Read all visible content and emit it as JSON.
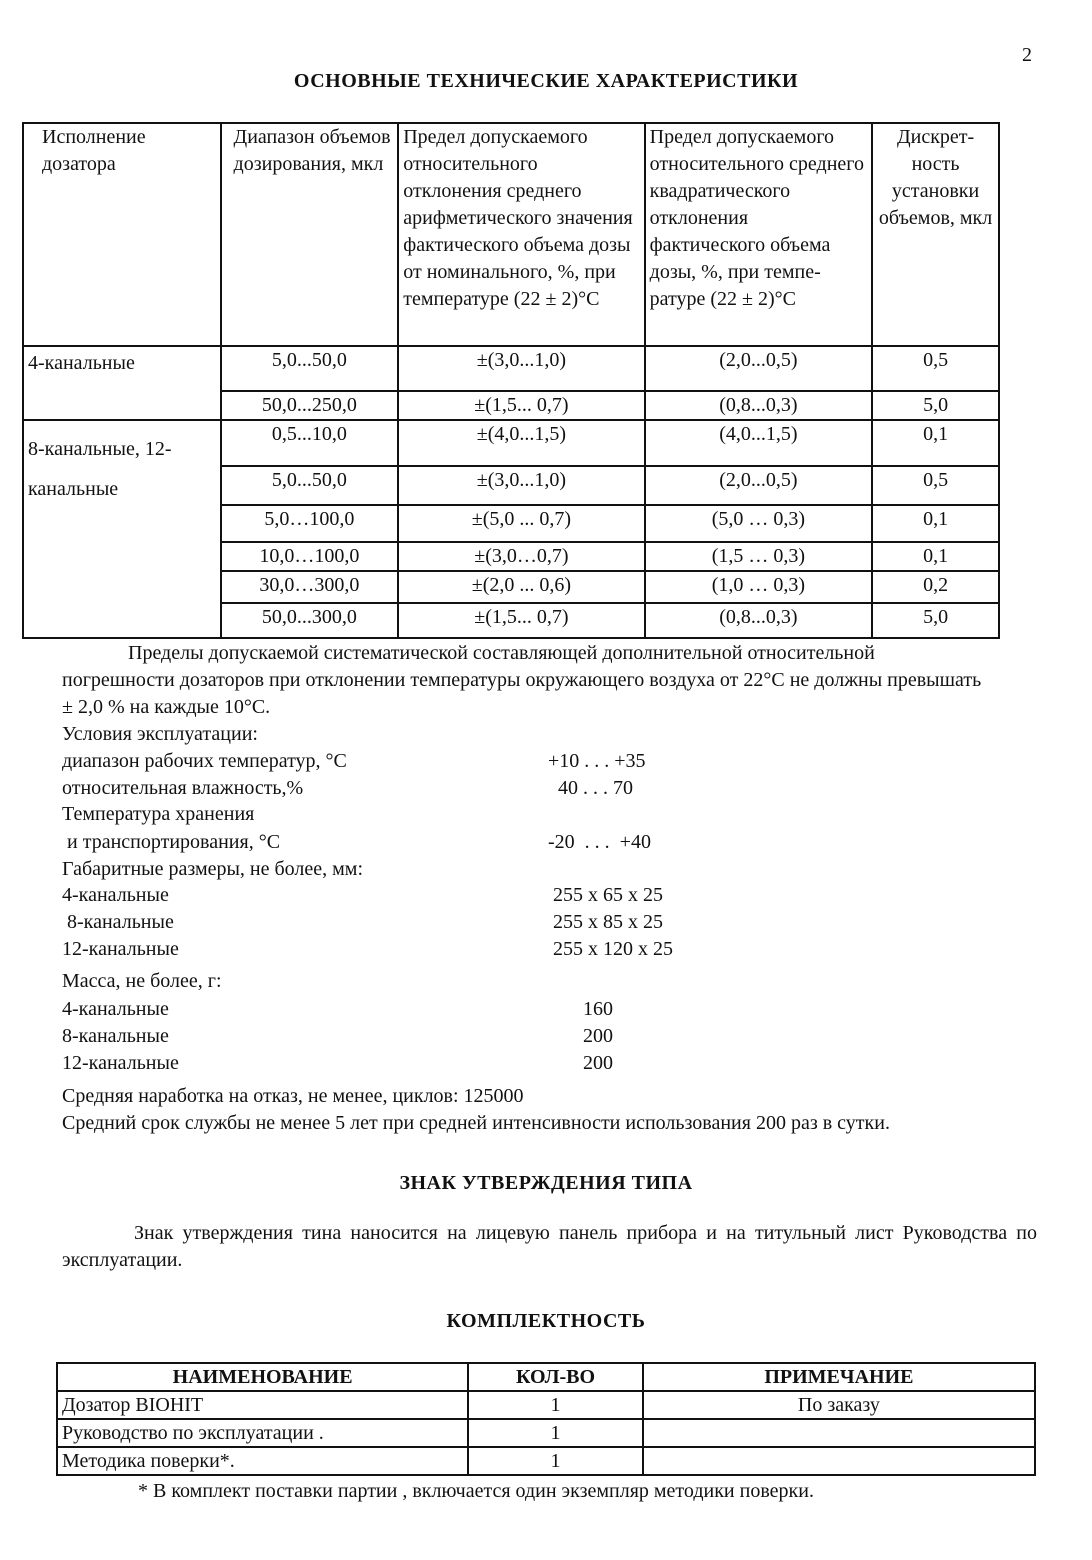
{
  "page_number": "2",
  "section1_title": "ОСНОВНЫЕ ТЕХНИЧЕСКИЕ ХАРАКТЕРИСТИКИ",
  "spec_table": {
    "headers": [
      "Исполнение дозатора",
      "Диапазон объемов дозирования, мкл",
      "Предел допускаемого относительного отклонения среднего арифметического значения фактического объема дозы от номинального, %, при температуре (22 ± 2)°С",
      "Предел допускаемого относительного среднего квадратического отклонения фактического объема дозы, %, при темпе-ратуре (22 ± 2)°С",
      "Дискрет-ность установки объемов, мкл"
    ],
    "groups": [
      {
        "name": "4-канальные",
        "rows": [
          [
            "5,0...50,0",
            "±(3,0...1,0)",
            "(2,0...0,5)",
            "0,5"
          ],
          [
            "50,0...250,0",
            "±(1,5... 0,7)",
            "(0,8...0,3)",
            "5,0"
          ]
        ]
      },
      {
        "name": "8-канальные, 12-канальные",
        "rows": [
          [
            "0,5...10,0",
            "±(4,0...1,5)",
            "(4,0...1,5)",
            "0,1"
          ],
          [
            "5,0...50,0",
            "±(3,0...1,0)",
            "(2,0...0,5)",
            "0,5"
          ],
          [
            "5,0…100,0",
            "±(5,0 ... 0,7)",
            "(5,0 … 0,3)",
            "0,1"
          ],
          [
            "10,0…100,0",
            "±(3,0…0,7)",
            "(1,5 … 0,3)",
            "0,1"
          ],
          [
            "30,0…300,0",
            "±(2,0 ... 0,6)",
            "(1,0 … 0,3)",
            "0,2"
          ],
          [
            "50,0...300,0",
            "±(1,5... 0,7)",
            "(0,8...0,3)",
            "5,0"
          ]
        ]
      }
    ]
  },
  "temp_paragraph": "Пределы допускаемой систематической составляющей дополнительной относительной погрешности дозаторов при отклонении температуры окружающего воздуха от 22°С не должны превышать ± 2,0 % на каждые 10°С.",
  "specs": [
    {
      "label": "Условия эксплуатации:",
      "value": ""
    },
    {
      "label": "диапазон рабочих температур, °С",
      "value": "+10 . . . +35"
    },
    {
      "label": "относительная влажность,%",
      "value": "  40 . . . 70"
    },
    {
      "label": "Температура хранения",
      "value": ""
    },
    {
      "label": " и транспортирования, °С",
      "value": "-20  . . .  +40"
    },
    {
      "label": "Габаритные размеры, не более, мм:",
      "value": ""
    },
    {
      "label": "4-канальные",
      "value": " 255 x 65 x 25"
    },
    {
      "label": " 8-канальные",
      "value": " 255 x 85 x 25"
    },
    {
      "label": "12-канальные",
      "value": " 255 x 120 x 25"
    },
    {
      "label": "Масса, не более, г:",
      "value": ""
    },
    {
      "label": "4-канальные",
      "value": "       160"
    },
    {
      "label": "8-канальные",
      "value": "       200"
    },
    {
      "label": "12-канальные",
      "value": "       200"
    },
    {
      "label": "Средняя наработка на отказ, не менее, циклов: 125000",
      "value": ""
    },
    {
      "label": "Средний срок службы не менее 5 лет при средней интенсивности использования 200 раз в сутки.",
      "value": ""
    }
  ],
  "section2_title": "ЗНАК  УТВЕРЖДЕНИЯ ТИПА",
  "section2_text": "Знак утверждения тина наносится на лицевую панель прибора и на титульный лист Руководства по эксплуатации.",
  "section3_title": "КОМПЛЕКТНОСТЬ",
  "kit_table": {
    "headers": [
      "НАИМЕНОВАНИЕ",
      "КОЛ-ВО",
      "ПРИМЕЧАНИЕ"
    ],
    "rows": [
      [
        "Дозатор BIOHIT",
        "1",
        "По заказу"
      ],
      [
        "Руководство по эксплуатации .",
        "1",
        ""
      ],
      [
        "Методика поверки*.",
        "1",
        ""
      ]
    ]
  },
  "footnote": "*  В комплект поставки партии , включается один экземпляр методики поверки."
}
